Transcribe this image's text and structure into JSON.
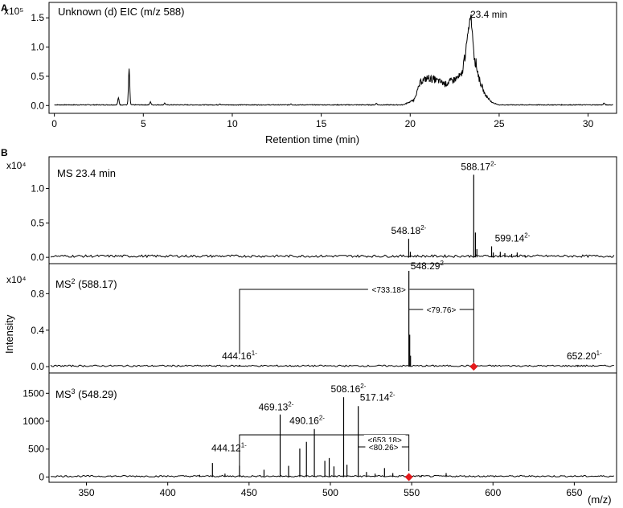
{
  "chart_data": [
    {
      "type": "line",
      "panel": "A",
      "title": "Unknown (d)  EIC (m/z 588)",
      "xlabel": "Retention time (min)",
      "ylabel": "",
      "y_scale_label": "x10⁵",
      "xlim": [
        -0.3,
        31.6
      ],
      "ylim": [
        -0.12,
        1.75
      ],
      "xticks": [
        0,
        5,
        10,
        15,
        20,
        25,
        30
      ],
      "yticks": [
        0.0,
        0.5,
        1.0,
        1.5
      ],
      "ytick_labels": [
        "0.0",
        "0.5",
        "1.0",
        "1.5"
      ],
      "grid": false,
      "annotation": {
        "text": "23.4 min",
        "x": 23.4,
        "y": 1.58
      },
      "peaks": [
        {
          "x": 3.6,
          "y": 0.12
        },
        {
          "x": 4.2,
          "y": 0.62
        },
        {
          "x": 5.4,
          "y": 0.05
        },
        {
          "x": 6.2,
          "y": 0.03
        },
        {
          "x": 9.3,
          "y": 0.02
        },
        {
          "x": 13.3,
          "y": 0.02
        },
        {
          "x": 18.1,
          "y": 0.03
        },
        {
          "x": 30.9,
          "y": 0.03
        }
      ],
      "envelope": [
        [
          19.6,
          0.0
        ],
        [
          20.2,
          0.08
        ],
        [
          20.6,
          0.4
        ],
        [
          21.0,
          0.46
        ],
        [
          21.5,
          0.42
        ],
        [
          22.0,
          0.36
        ],
        [
          22.5,
          0.44
        ],
        [
          22.9,
          0.5
        ],
        [
          23.2,
          1.1
        ],
        [
          23.4,
          1.58
        ],
        [
          23.6,
          0.85
        ],
        [
          23.9,
          0.42
        ],
        [
          24.2,
          0.18
        ],
        [
          24.6,
          0.04
        ],
        [
          25.0,
          0.0
        ]
      ]
    },
    {
      "type": "stem",
      "panel": "B",
      "title": "MS 23.4 min",
      "xlim": [
        327,
        676
      ],
      "ylim": [
        -0.08,
        1.45
      ],
      "y_scale_label": "x10⁴",
      "yticks": [
        0.0,
        0.5,
        1.0
      ],
      "ytick_labels": [
        "0.0",
        "0.5",
        "1.0"
      ],
      "peaks": [
        {
          "x": 548.18,
          "y": 0.27,
          "label_base": "548.18",
          "label_sup": "2-"
        },
        {
          "x": 588.17,
          "y": 1.2,
          "label_base": "588.17",
          "label_sup": "2-"
        },
        {
          "x": 599.14,
          "y": 0.16,
          "label_base": "599.14",
          "label_sup": "2-"
        },
        {
          "x": 589.2,
          "y": 0.36
        },
        {
          "x": 590.1,
          "y": 0.12
        },
        {
          "x": 600.2,
          "y": 0.07
        },
        {
          "x": 604.5,
          "y": 0.08
        },
        {
          "x": 607.3,
          "y": 0.06
        },
        {
          "x": 611.5,
          "y": 0.05
        },
        {
          "x": 614.9,
          "y": 0.07
        },
        {
          "x": 619.8,
          "y": 0.03
        },
        {
          "x": 549.2,
          "y": 0.08
        }
      ]
    },
    {
      "type": "stem",
      "panel": "B",
      "title_base": "MS",
      "title_sup": "2",
      "title_rest": " (588.17)",
      "ylabel": "Intensity",
      "xlim": [
        327,
        676
      ],
      "ylim": [
        -0.06,
        1.12
      ],
      "y_scale_label": "x10⁴",
      "yticks": [
        0.0,
        0.4,
        0.8
      ],
      "ytick_labels": [
        "0.0",
        "0.4",
        "0.8"
      ],
      "precursor": 588.17,
      "peaks": [
        {
          "x": 444.16,
          "y": 0.02,
          "label_base": "444.16",
          "label_sup": "1-"
        },
        {
          "x": 548.29,
          "y": 1.05,
          "label_base": "548.29",
          "label_sup": "2-"
        },
        {
          "x": 652.2,
          "y": 0.02,
          "label_base": "652.20",
          "label_sup": "1-"
        },
        {
          "x": 548.8,
          "y": 0.35
        },
        {
          "x": 549.3,
          "y": 0.12
        }
      ],
      "brackets": [
        {
          "from": 444.16,
          "to": 588.17,
          "text": "<733.18>"
        },
        {
          "from": 548.29,
          "to": 588.17,
          "text": "<79.76>"
        }
      ]
    },
    {
      "type": "stem",
      "panel": "B",
      "title_base": "MS",
      "title_sup": "3",
      "title_rest": " (548.29)",
      "xlabel": "(m/z)",
      "xlim": [
        327,
        676
      ],
      "ylim": [
        -80,
        1850
      ],
      "xticks": [
        350,
        400,
        450,
        500,
        550,
        600,
        650
      ],
      "yticks": [
        0,
        500,
        1000,
        1500
      ],
      "ytick_labels": [
        "0",
        "500",
        "1000",
        "1500"
      ],
      "precursor": 548.29,
      "peaks": [
        {
          "x": 444.12,
          "y": 200,
          "label_base": "444.12",
          "label_sup": "1-"
        },
        {
          "x": 469.13,
          "y": 1120,
          "label_base": "469.13",
          "label_sup": "2-"
        },
        {
          "x": 490.16,
          "y": 860,
          "label_base": "490.16",
          "label_sup": "2-"
        },
        {
          "x": 508.16,
          "y": 1430,
          "label_base": "508.16",
          "label_sup": "2-"
        },
        {
          "x": 517.14,
          "y": 1270,
          "label_base": "517.14",
          "label_sup": "2-"
        },
        {
          "x": 427.5,
          "y": 250
        },
        {
          "x": 419.6,
          "y": 40
        },
        {
          "x": 435.2,
          "y": 60
        },
        {
          "x": 459.2,
          "y": 130
        },
        {
          "x": 474.3,
          "y": 200
        },
        {
          "x": 481.2,
          "y": 510
        },
        {
          "x": 485.3,
          "y": 630
        },
        {
          "x": 496.6,
          "y": 290
        },
        {
          "x": 499.3,
          "y": 340
        },
        {
          "x": 502.2,
          "y": 190
        },
        {
          "x": 510.2,
          "y": 220
        },
        {
          "x": 522.2,
          "y": 90
        },
        {
          "x": 527.5,
          "y": 60
        },
        {
          "x": 533.3,
          "y": 160
        },
        {
          "x": 538.4,
          "y": 70
        },
        {
          "x": 556.0,
          "y": 30
        },
        {
          "x": 571.2,
          "y": 70
        }
      ],
      "brackets": [
        {
          "from": 444.12,
          "to": 548.29,
          "text": "<653.18>"
        },
        {
          "from": 517.14,
          "to": 548.29,
          "text": "<80.26>"
        }
      ]
    }
  ],
  "labels": {
    "panel_a": "A",
    "panel_b": "B"
  },
  "colors": {
    "precursor_marker": "#e41a1c"
  }
}
